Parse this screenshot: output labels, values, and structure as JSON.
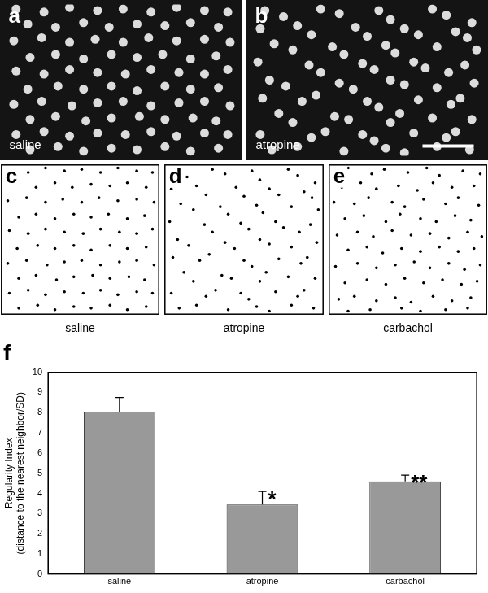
{
  "chart_data": [
    {
      "type": "scatter",
      "title": "a",
      "annotations": [
        {
          "text": "saline"
        }
      ],
      "marker": "blob",
      "color": "#dcdcdc",
      "tick_labels": false,
      "xlim": [
        0,
        100
      ],
      "ylim": [
        0,
        100
      ],
      "x": [
        5,
        17,
        28,
        40,
        51,
        63,
        74,
        86,
        96,
        10,
        22,
        34,
        45,
        57,
        69,
        80,
        92,
        4,
        16,
        28,
        39,
        51,
        62,
        74,
        86,
        97,
        11,
        22,
        34,
        46,
        57,
        68,
        80,
        91,
        5,
        17,
        28,
        40,
        52,
        63,
        75,
        86,
        96,
        10,
        23,
        34,
        46,
        57,
        69,
        80,
        92,
        4,
        16,
        29,
        40,
        51,
        63,
        75,
        86,
        97,
        11,
        22,
        35,
        46,
        58,
        69,
        81,
        91,
        5,
        17,
        28,
        40,
        52,
        63,
        74,
        86,
        96,
        11,
        23,
        34,
        46,
        57,
        69,
        80,
        92
      ],
      "values": [
        97,
        95,
        98,
        96,
        97,
        95,
        98,
        96,
        95,
        87,
        85,
        88,
        85,
        87,
        86,
        88,
        85,
        76,
        78,
        75,
        77,
        75,
        78,
        76,
        77,
        75,
        65,
        67,
        64,
        67,
        65,
        67,
        64,
        66,
        56,
        54,
        57,
        55,
        54,
        57,
        55,
        54,
        57,
        44,
        46,
        44,
        46,
        43,
        46,
        44,
        45,
        34,
        36,
        33,
        35,
        36,
        33,
        35,
        36,
        33,
        24,
        26,
        23,
        25,
        26,
        24,
        25,
        23,
        14,
        16,
        13,
        15,
        14,
        16,
        13,
        15,
        14,
        4,
        6,
        3,
        5,
        4,
        6,
        3,
        5
      ]
    },
    {
      "type": "scatter",
      "title": "b",
      "annotations": [
        {
          "text": "atropine"
        }
      ],
      "marker": "blob",
      "color": "#dcdcdc",
      "tick_labels": false,
      "xlim": [
        0,
        100
      ],
      "ylim": [
        0,
        100
      ],
      "x": [
        6,
        14,
        30,
        38,
        55,
        60,
        78,
        84,
        95,
        4,
        20,
        26,
        45,
        50,
        66,
        72,
        88,
        93,
        10,
        18,
        35,
        40,
        58,
        62,
        80,
        97,
        3,
        25,
        30,
        48,
        53,
        70,
        75,
        85,
        92,
        8,
        15,
        38,
        44,
        60,
        66,
        80,
        96,
        5,
        22,
        28,
        50,
        55,
        72,
        86,
        90,
        12,
        18,
        36,
        42,
        60,
        64,
        78,
        95,
        4,
        26,
        32,
        48,
        53,
        70,
        84,
        88,
        9,
        20,
        40,
        58,
        66,
        80,
        94
      ],
      "values": [
        96,
        92,
        97,
        94,
        96,
        90,
        97,
        93,
        88,
        84,
        86,
        80,
        85,
        79,
        84,
        80,
        82,
        78,
        74,
        70,
        72,
        67,
        73,
        68,
        72,
        70,
        62,
        60,
        55,
        61,
        57,
        62,
        58,
        55,
        60,
        50,
        46,
        48,
        44,
        50,
        47,
        45,
        48,
        38,
        36,
        40,
        36,
        32,
        37,
        34,
        38,
        28,
        22,
        26,
        24,
        22,
        28,
        25,
        24,
        14,
        12,
        16,
        14,
        10,
        15,
        12,
        16,
        4,
        6,
        3,
        5,
        2,
        6,
        4
      ]
    },
    {
      "type": "scatter",
      "title": "c",
      "x_label": "saline",
      "marker": "dot",
      "color": "#000000",
      "tick_labels": false,
      "xlim": [
        0,
        100
      ],
      "ylim": [
        0,
        100
      ],
      "x": [
        5,
        17,
        28,
        40,
        51,
        63,
        74,
        86,
        96,
        10,
        22,
        34,
        45,
        57,
        69,
        80,
        92,
        4,
        16,
        28,
        39,
        51,
        62,
        74,
        86,
        97,
        11,
        22,
        34,
        46,
        57,
        68,
        80,
        91,
        5,
        17,
        28,
        40,
        52,
        63,
        75,
        86,
        96,
        10,
        23,
        34,
        46,
        57,
        69,
        80,
        92,
        4,
        16,
        29,
        40,
        51,
        63,
        75,
        86,
        97,
        11,
        22,
        35,
        46,
        58,
        69,
        81,
        91,
        5,
        17,
        28,
        40,
        52,
        63,
        74,
        86,
        96,
        11,
        23,
        34,
        46,
        57,
        69,
        80,
        92
      ],
      "values": [
        97,
        95,
        98,
        96,
        97,
        95,
        98,
        96,
        95,
        87,
        85,
        88,
        85,
        87,
        86,
        88,
        85,
        76,
        78,
        75,
        77,
        75,
        78,
        76,
        77,
        75,
        65,
        67,
        64,
        67,
        65,
        67,
        64,
        66,
        56,
        54,
        57,
        55,
        54,
        57,
        55,
        54,
        57,
        44,
        46,
        44,
        46,
        43,
        46,
        44,
        45,
        34,
        36,
        33,
        35,
        36,
        33,
        35,
        36,
        33,
        24,
        26,
        23,
        25,
        26,
        24,
        25,
        23,
        14,
        16,
        13,
        15,
        14,
        16,
        13,
        15,
        14,
        4,
        6,
        3,
        5,
        4,
        6,
        3,
        5
      ]
    },
    {
      "type": "scatter",
      "title": "d",
      "x_label": "atropine",
      "marker": "dot",
      "color": "#000000",
      "tick_labels": false,
      "xlim": [
        0,
        100
      ],
      "ylim": [
        0,
        100
      ],
      "x": [
        6,
        14,
        30,
        38,
        55,
        60,
        78,
        84,
        95,
        4,
        20,
        26,
        45,
        50,
        66,
        72,
        88,
        93,
        10,
        18,
        35,
        40,
        58,
        62,
        80,
        97,
        3,
        25,
        30,
        48,
        53,
        70,
        75,
        85,
        92,
        8,
        15,
        38,
        44,
        60,
        66,
        80,
        96,
        5,
        22,
        28,
        50,
        55,
        72,
        86,
        90,
        12,
        18,
        36,
        42,
        60,
        64,
        78,
        95,
        4,
        26,
        32,
        48,
        53,
        70,
        84,
        88,
        9,
        20,
        40,
        58,
        66,
        80,
        94
      ],
      "values": [
        96,
        92,
        97,
        94,
        96,
        90,
        97,
        93,
        88,
        84,
        86,
        80,
        85,
        79,
        84,
        80,
        82,
        78,
        74,
        70,
        72,
        67,
        73,
        68,
        72,
        70,
        62,
        60,
        55,
        61,
        57,
        62,
        58,
        55,
        60,
        50,
        46,
        48,
        44,
        50,
        47,
        45,
        48,
        38,
        36,
        40,
        36,
        32,
        37,
        34,
        38,
        28,
        22,
        26,
        24,
        22,
        28,
        25,
        24,
        14,
        12,
        16,
        14,
        10,
        15,
        12,
        16,
        4,
        6,
        3,
        5,
        2,
        6,
        4
      ]
    },
    {
      "type": "scatter",
      "title": "e",
      "x_label": "carbachol",
      "marker": "dot",
      "color": "#000000",
      "tick_labels": false,
      "xlim": [
        0,
        100
      ],
      "ylim": [
        0,
        100
      ],
      "x": [
        4,
        12,
        27,
        35,
        50,
        62,
        70,
        85,
        96,
        8,
        20,
        30,
        44,
        56,
        66,
        78,
        92,
        3,
        16,
        25,
        40,
        48,
        60,
        74,
        82,
        95,
        10,
        22,
        36,
        45,
        58,
        68,
        80,
        90,
        5,
        18,
        28,
        40,
        52,
        64,
        76,
        88,
        97,
        12,
        24,
        34,
        46,
        58,
        70,
        82,
        92,
        4,
        18,
        30,
        42,
        54,
        64,
        76,
        86,
        96,
        10,
        24,
        36,
        48,
        60,
        72,
        84,
        94,
        6,
        16,
        30,
        42,
        52,
        66,
        78,
        90,
        12,
        26,
        46,
        58,
        74,
        88
      ],
      "values": [
        95,
        98,
        94,
        97,
        95,
        98,
        93,
        96,
        94,
        85,
        88,
        84,
        86,
        83,
        88,
        85,
        86,
        75,
        74,
        78,
        75,
        72,
        77,
        74,
        78,
        73,
        64,
        66,
        62,
        67,
        64,
        62,
        66,
        63,
        53,
        55,
        52,
        56,
        53,
        54,
        51,
        55,
        52,
        43,
        45,
        41,
        44,
        42,
        45,
        42,
        44,
        32,
        34,
        31,
        33,
        35,
        31,
        34,
        30,
        33,
        21,
        23,
        20,
        24,
        21,
        23,
        20,
        22,
        10,
        12,
        9,
        11,
        8,
        12,
        9,
        11,
        2,
        3,
        4,
        2,
        3,
        4
      ]
    },
    {
      "type": "bar",
      "title": "f",
      "y_label": [
        "Regularity Index",
        "(distance to the nearest neighbor/SD)"
      ],
      "categories": [
        "saline",
        "atropine",
        "carbachol"
      ],
      "values": [
        8.05,
        3.45,
        4.6
      ],
      "errors": [
        0.7,
        0.65,
        0.3
      ],
      "color": "#999999",
      "ylim": [
        0,
        10
      ],
      "yticks": [
        0,
        1,
        2,
        3,
        4,
        5,
        6,
        7,
        8,
        9,
        10
      ],
      "grid": false,
      "annotations": [
        {
          "text": "*",
          "category": "atropine"
        },
        {
          "text": "**",
          "category": "carbachol"
        }
      ]
    }
  ]
}
